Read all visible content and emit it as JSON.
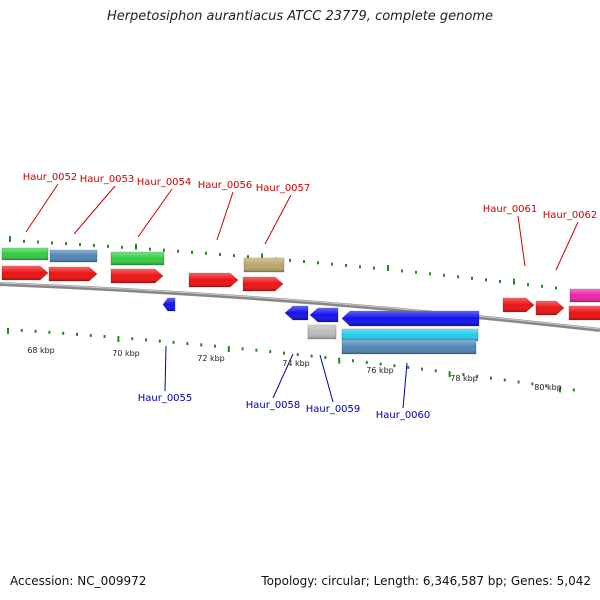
{
  "title": "Herpetosiphon aurantiacus ATCC 23779, complete genome",
  "footer": {
    "accession": "Accession: NC_009972",
    "stats": "Topology: circular; Length: 6,346,587 bp; Genes: 5,042"
  },
  "colors": {
    "cds_plus": "#ee1111",
    "cds_minus": "#1111ee",
    "gene_green": "#33cc44",
    "gene_steelblue": "#4f86b8",
    "gene_khaki": "#b8a76a",
    "gene_magenta": "#ee22aa",
    "gene_cyan": "#22ccee",
    "gene_grey": "#bbbbbb",
    "backbone": "#888888",
    "ticks": "#228822",
    "label_plus": "#cc0000",
    "label_minus": "#0000aa"
  },
  "kbp_labels": [
    "68 kbp",
    "70 kbp",
    "72 kbp",
    "74 kbp",
    "76 kbp",
    "78 kbp",
    "80 kbp"
  ],
  "labels_plus": [
    "Haur_0052",
    "Haur_0053",
    "Haur_0054",
    "Haur_0056",
    "Haur_0057",
    "Haur_0061",
    "Haur_0062"
  ],
  "labels_minus": [
    "Haur_0055",
    "Haur_0058",
    "Haur_0059",
    "Haur_0060"
  ]
}
